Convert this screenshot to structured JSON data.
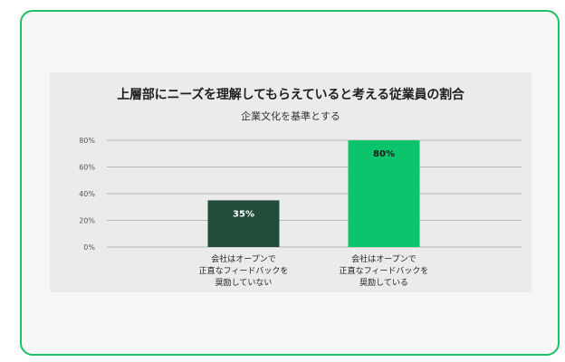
{
  "chart_data": {
    "type": "bar",
    "title": "上層部にニーズを理解してもらえていると考える従業員の割合",
    "subtitle": "企業文化を基準とする",
    "categories": [
      "会社はオープンで\n正直なフィードバックを\n奨励していない",
      "会社はオープンで\n正直なフィードバックを\n奨励している"
    ],
    "values": [
      35,
      80
    ],
    "data_labels": [
      "35%",
      "80%"
    ],
    "bar_colors": [
      "#234d3b",
      "#0cc46c"
    ],
    "yticks": [
      "0%",
      "20%",
      "40%",
      "60%",
      "80%"
    ],
    "ylim": [
      0,
      80
    ],
    "grid": true,
    "xlabel": "",
    "ylabel": ""
  },
  "colors": {
    "frame": "#1fc06a",
    "panel": "#ebebeb",
    "grid": "#b9b9b9"
  }
}
